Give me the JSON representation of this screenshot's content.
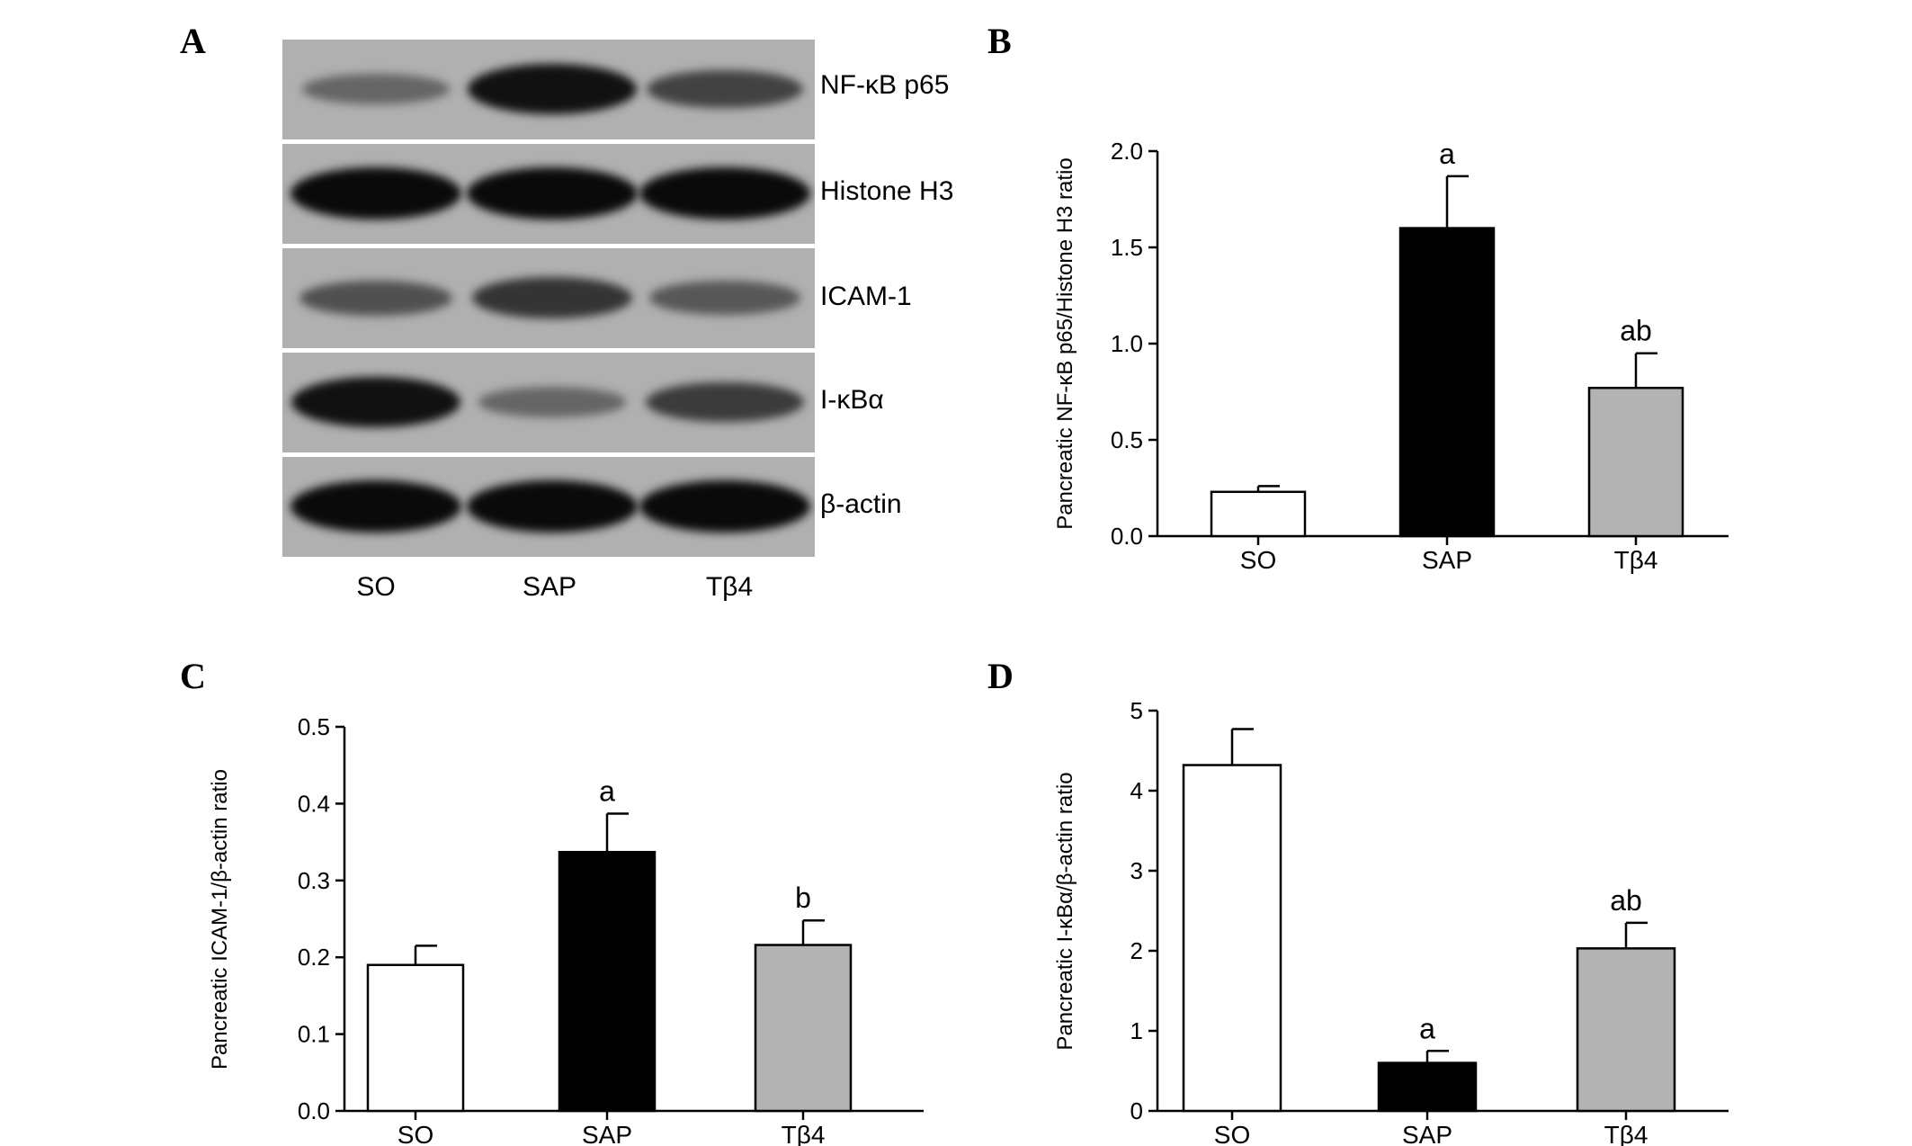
{
  "panels": {
    "a": "A",
    "b": "B",
    "c": "C",
    "d": "D"
  },
  "blot": {
    "lanes": [
      "SO",
      "SAP",
      "Tβ4"
    ],
    "rows": [
      {
        "label": "NF-κB p65",
        "intensity": [
          0.35,
          0.95,
          0.6
        ]
      },
      {
        "label": "Histone H3",
        "intensity": [
          1.0,
          1.0,
          1.0
        ]
      },
      {
        "label": "ICAM-1",
        "intensity": [
          0.5,
          0.7,
          0.45
        ]
      },
      {
        "label": "I-κBα",
        "intensity": [
          0.95,
          0.35,
          0.65
        ]
      },
      {
        "label": "β-actin",
        "intensity": [
          1.0,
          1.0,
          1.0
        ]
      }
    ]
  },
  "chart_data": [
    {
      "type": "bar",
      "panel": "B",
      "categories": [
        "SO",
        "SAP",
        "Tβ4"
      ],
      "values": [
        0.23,
        1.6,
        0.77
      ],
      "errors": [
        0.03,
        0.27,
        0.18
      ],
      "bar_colors": [
        "#ffffff",
        "#000000",
        "#b3b3b3"
      ],
      "significance": [
        "",
        "a",
        "ab"
      ],
      "ylabel": "Pancreatic NF-κB p65/Histone H3 ratio",
      "ylim": [
        0,
        2.0
      ],
      "yticks": [
        "0.0",
        "0.5",
        "1.0",
        "1.5",
        "2.0"
      ]
    },
    {
      "type": "bar",
      "panel": "C",
      "categories": [
        "SO",
        "SAP",
        "Tβ4"
      ],
      "values": [
        0.19,
        0.337,
        0.216
      ],
      "errors": [
        0.025,
        0.05,
        0.032
      ],
      "bar_colors": [
        "#ffffff",
        "#000000",
        "#b3b3b3"
      ],
      "significance": [
        "",
        "a",
        "b"
      ],
      "ylabel": "Pancreatic ICAM-1/β-actin ratio",
      "ylim": [
        0,
        0.5
      ],
      "yticks": [
        "0.0",
        "0.1",
        "0.2",
        "0.3",
        "0.4",
        "0.5"
      ]
    },
    {
      "type": "bar",
      "panel": "D",
      "categories": [
        "SO",
        "SAP",
        "Tβ4"
      ],
      "values": [
        4.32,
        0.6,
        2.03
      ],
      "errors": [
        0.45,
        0.15,
        0.32
      ],
      "bar_colors": [
        "#ffffff",
        "#000000",
        "#b3b3b3"
      ],
      "significance": [
        "",
        "a",
        "ab"
      ],
      "ylabel": "Pancreatic I-κBα/β-actin ratio",
      "ylim": [
        0,
        5
      ],
      "yticks": [
        "0",
        "1",
        "2",
        "3",
        "4",
        "5"
      ]
    }
  ]
}
